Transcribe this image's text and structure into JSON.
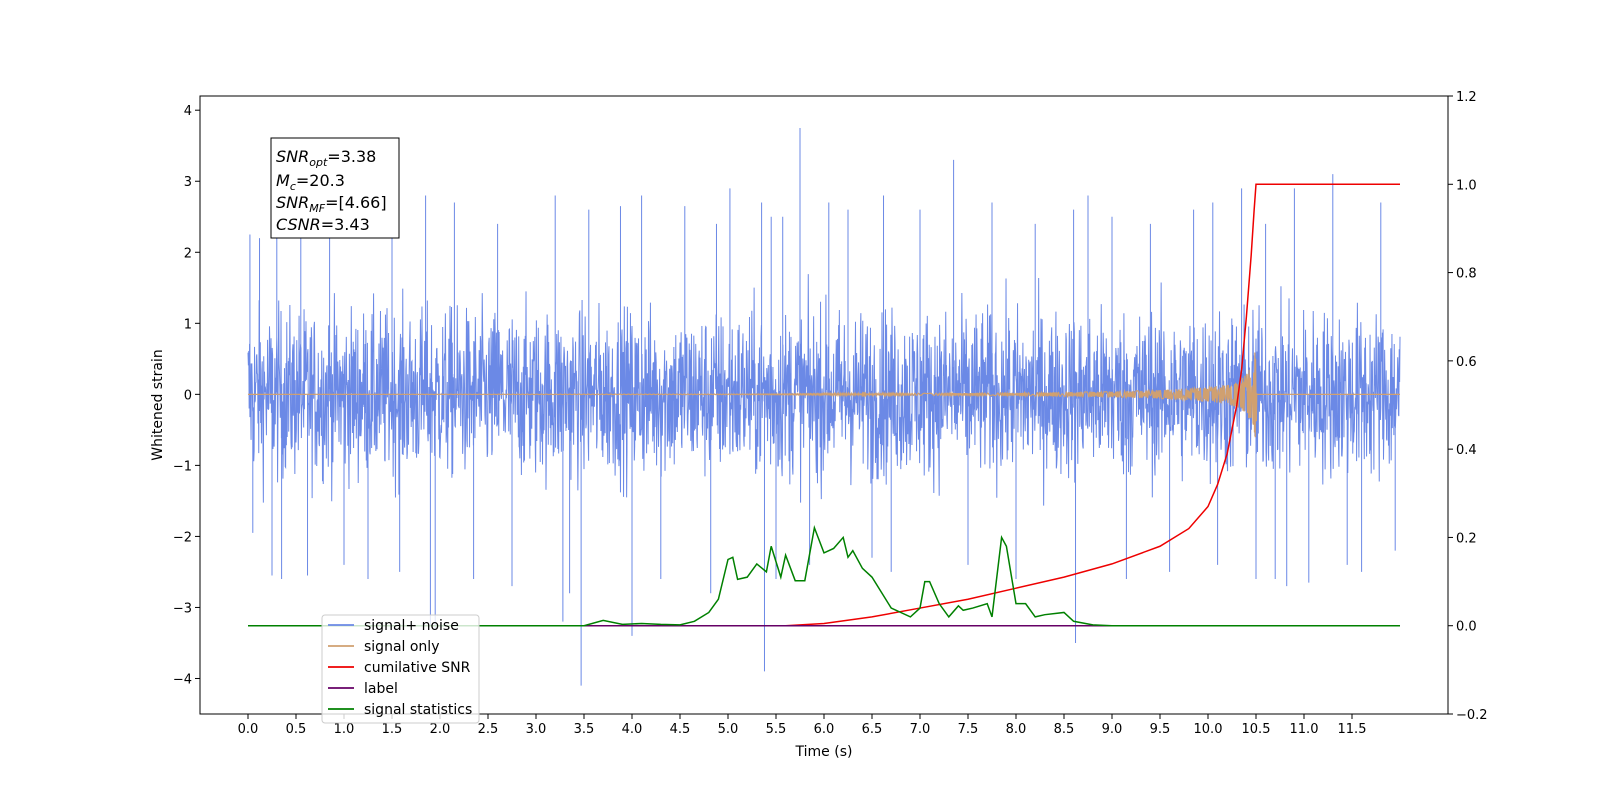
{
  "chart_data": {
    "type": "line",
    "xlabel": "Time (s)",
    "ylabel": "Whitened strain",
    "xlim": [
      -0.5,
      12.5
    ],
    "ylim_left": [
      -4.5,
      4.2
    ],
    "ylim_right": [
      -0.2,
      1.2
    ],
    "x_ticks": [
      0.0,
      0.5,
      1.0,
      1.5,
      2.0,
      2.5,
      3.0,
      3.5,
      4.0,
      4.5,
      5.0,
      5.5,
      6.0,
      6.5,
      7.0,
      7.5,
      8.0,
      8.5,
      9.0,
      9.5,
      10.0,
      10.5,
      11.0,
      11.5
    ],
    "x_tick_labels": [
      "0.0",
      "0.5",
      "1.0",
      "1.5",
      "2.0",
      "2.5",
      "3.0",
      "3.5",
      "4.0",
      "4.5",
      "5.0",
      "5.5",
      "6.0",
      "6.5",
      "7.0",
      "7.5",
      "8.0",
      "8.5",
      "9.0",
      "9.5",
      "10.0",
      "10.5",
      "11.0",
      "11.5"
    ],
    "y_left_ticks": [
      -4,
      -3,
      -2,
      -1,
      0,
      1,
      2,
      3,
      4
    ],
    "y_left_tick_labels": [
      "−4",
      "−3",
      "−2",
      "−1",
      "0",
      "1",
      "2",
      "3",
      "4"
    ],
    "y_right_ticks": [
      -0.2,
      0.0,
      0.2,
      0.4,
      0.6,
      0.8,
      1.0,
      1.2
    ],
    "y_right_tick_labels": [
      "−0.2",
      "0.0",
      "0.2",
      "0.4",
      "0.6",
      "0.8",
      "1.0",
      "1.2"
    ],
    "grid": false,
    "legend_position": "lower-left",
    "annotation": {
      "snr_opt": "=3.38",
      "mc": "=20.3",
      "snr_mf": "=[4.66]",
      "csnr": "=3.43"
    },
    "series": [
      {
        "name": "signal+ noise",
        "axis": "left",
        "color": "#6b89e6",
        "kind": "noise",
        "x_range": [
          0.0,
          12.0
        ],
        "typical_range": [
          -1.4,
          1.4
        ],
        "peaks": [
          [
            0.02,
            2.25
          ],
          [
            0.05,
            -1.95
          ],
          [
            0.12,
            2.2
          ],
          [
            0.25,
            -2.55
          ],
          [
            0.3,
            2.4
          ],
          [
            0.35,
            -2.6
          ],
          [
            0.55,
            2.3
          ],
          [
            0.62,
            -2.55
          ],
          [
            0.85,
            2.6
          ],
          [
            1.0,
            -2.4
          ],
          [
            1.25,
            -2.6
          ],
          [
            1.5,
            2.7
          ],
          [
            1.58,
            -2.5
          ],
          [
            1.85,
            2.8
          ],
          [
            1.9,
            -3.25
          ],
          [
            1.95,
            -3.3
          ],
          [
            2.15,
            2.7
          ],
          [
            2.35,
            -2.6
          ],
          [
            2.6,
            2.4
          ],
          [
            2.75,
            -2.7
          ],
          [
            3.2,
            2.8
          ],
          [
            3.28,
            -3.2
          ],
          [
            3.35,
            -2.8
          ],
          [
            3.47,
            -4.1
          ],
          [
            3.55,
            2.6
          ],
          [
            3.88,
            2.65
          ],
          [
            4.0,
            -3.4
          ],
          [
            4.1,
            2.8
          ],
          [
            4.3,
            -2.6
          ],
          [
            4.55,
            2.65
          ],
          [
            4.82,
            -2.8
          ],
          [
            4.88,
            2.4
          ],
          [
            5.02,
            2.9
          ],
          [
            5.35,
            2.7
          ],
          [
            5.38,
            -3.9
          ],
          [
            5.45,
            2.5
          ],
          [
            5.5,
            -2.6
          ],
          [
            5.57,
            2.5
          ],
          [
            5.75,
            3.75
          ],
          [
            5.85,
            -2.4
          ],
          [
            6.05,
            2.7
          ],
          [
            6.25,
            2.6
          ],
          [
            6.5,
            -2.3
          ],
          [
            6.62,
            2.8
          ],
          [
            6.7,
            -2.5
          ],
          [
            7.0,
            2.6
          ],
          [
            7.35,
            3.3
          ],
          [
            7.5,
            -2.4
          ],
          [
            7.75,
            2.7
          ],
          [
            8.0,
            -2.6
          ],
          [
            8.2,
            2.4
          ],
          [
            8.6,
            2.6
          ],
          [
            8.62,
            -3.5
          ],
          [
            8.75,
            2.8
          ],
          [
            9.0,
            2.5
          ],
          [
            9.15,
            -2.6
          ],
          [
            9.4,
            2.4
          ],
          [
            9.6,
            -2.5
          ],
          [
            9.85,
            2.6
          ],
          [
            10.05,
            2.7
          ],
          [
            10.1,
            -2.4
          ],
          [
            10.35,
            2.9
          ],
          [
            10.5,
            -2.6
          ],
          [
            10.6,
            2.4
          ],
          [
            10.7,
            -2.6
          ],
          [
            10.82,
            -2.7
          ],
          [
            10.9,
            2.9
          ],
          [
            11.05,
            -2.65
          ],
          [
            11.3,
            3.1
          ],
          [
            11.45,
            -2.4
          ],
          [
            11.6,
            -2.5
          ],
          [
            11.8,
            2.7
          ],
          [
            11.95,
            -2.2
          ]
        ]
      },
      {
        "name": "signal only",
        "axis": "left",
        "color": "#d0a070",
        "kind": "chirp",
        "x_range": [
          0.0,
          12.0
        ],
        "amplitude_points": [
          [
            0.0,
            0.0
          ],
          [
            5.0,
            0.005
          ],
          [
            8.0,
            0.02
          ],
          [
            9.0,
            0.04
          ],
          [
            9.5,
            0.06
          ],
          [
            10.0,
            0.1
          ],
          [
            10.2,
            0.14
          ],
          [
            10.3,
            0.18
          ],
          [
            10.4,
            0.28
          ],
          [
            10.45,
            0.4
          ],
          [
            10.5,
            0.65
          ],
          [
            10.51,
            0.0
          ],
          [
            12.0,
            0.0
          ]
        ]
      },
      {
        "name": "cumilative SNR",
        "axis": "right",
        "color": "#ee0000",
        "kind": "line",
        "x": [
          0.0,
          5.0,
          5.6,
          6.0,
          6.5,
          7.0,
          7.5,
          8.0,
          8.5,
          9.0,
          9.5,
          9.8,
          10.0,
          10.1,
          10.2,
          10.3,
          10.35,
          10.4,
          10.45,
          10.48,
          10.5,
          10.52,
          11.0,
          12.0
        ],
        "y": [
          0.0,
          0.0,
          0.0,
          0.005,
          0.02,
          0.04,
          0.06,
          0.085,
          0.11,
          0.14,
          0.18,
          0.22,
          0.27,
          0.32,
          0.39,
          0.5,
          0.58,
          0.7,
          0.84,
          0.94,
          1.0,
          1.0,
          1.0,
          1.0
        ]
      },
      {
        "name": "label",
        "axis": "right",
        "color": "#660066",
        "kind": "line",
        "x": [
          0.0,
          12.0
        ],
        "y": [
          0.0,
          0.0
        ]
      },
      {
        "name": "signal statistics",
        "axis": "right",
        "color": "#008000",
        "kind": "line",
        "x": [
          0.0,
          3.3,
          3.5,
          3.7,
          3.9,
          4.1,
          4.3,
          4.5,
          4.65,
          4.8,
          4.9,
          5.0,
          5.05,
          5.1,
          5.2,
          5.3,
          5.4,
          5.45,
          5.55,
          5.6,
          5.7,
          5.8,
          5.9,
          6.0,
          6.1,
          6.2,
          6.25,
          6.3,
          6.4,
          6.5,
          6.7,
          6.9,
          7.0,
          7.05,
          7.1,
          7.2,
          7.3,
          7.4,
          7.45,
          7.55,
          7.7,
          7.75,
          7.85,
          7.9,
          8.0,
          8.1,
          8.2,
          8.3,
          8.5,
          8.6,
          8.8,
          9.0,
          12.0
        ],
        "y": [
          0.0,
          0.0,
          0.0,
          0.012,
          0.003,
          0.005,
          0.003,
          0.002,
          0.01,
          0.03,
          0.06,
          0.15,
          0.155,
          0.105,
          0.11,
          0.14,
          0.122,
          0.18,
          0.11,
          0.16,
          0.102,
          0.102,
          0.222,
          0.165,
          0.175,
          0.2,
          0.155,
          0.17,
          0.13,
          0.11,
          0.04,
          0.02,
          0.04,
          0.1,
          0.1,
          0.05,
          0.02,
          0.045,
          0.035,
          0.04,
          0.05,
          0.02,
          0.2,
          0.18,
          0.05,
          0.05,
          0.02,
          0.025,
          0.03,
          0.01,
          0.002,
          0.0,
          0.0
        ]
      }
    ],
    "legend_entries": [
      "signal+ noise",
      "signal only",
      "cumilative SNR",
      "label",
      "signal statistics"
    ]
  }
}
